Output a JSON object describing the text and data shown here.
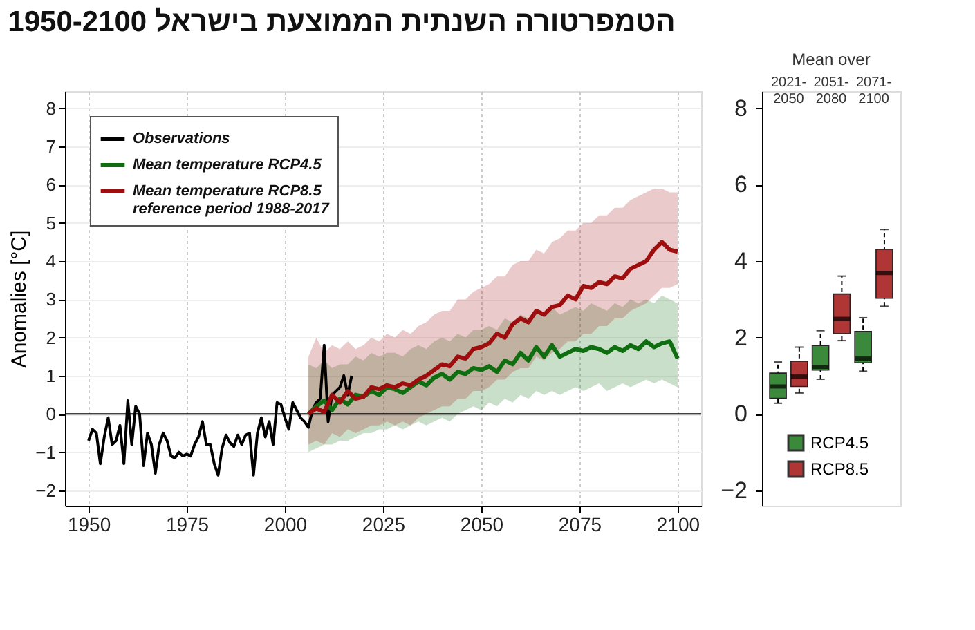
{
  "chart_data": [
    {
      "type": "line",
      "title": "הטמפרטורה השנתית הממוצעת בישראל 1950-2100",
      "ylabel": "Anomalies [°C]",
      "xlim": [
        1944,
        2106
      ],
      "xticks": [
        1950,
        1975,
        2000,
        2025,
        2050,
        2075,
        2100
      ],
      "ylim": [
        -2.4,
        8.45
      ],
      "yticks": [
        -2,
        -1,
        0,
        1,
        2,
        3,
        4,
        5,
        6,
        7,
        8
      ],
      "grid": true,
      "legend": "top left",
      "annotations": [
        "reference period 1988-2017"
      ],
      "ref_lines": [
        {
          "axis": "y",
          "value": 0,
          "color": "#000000"
        }
      ],
      "series": [
        {
          "name": "Observations",
          "color": "#000000",
          "x": [
            1950,
            1951,
            1952,
            1953,
            1954,
            1955,
            1956,
            1957,
            1958,
            1959,
            1960,
            1961,
            1962,
            1963,
            1964,
            1965,
            1966,
            1967,
            1968,
            1969,
            1970,
            1971,
            1972,
            1973,
            1974,
            1975,
            1976,
            1977,
            1978,
            1979,
            1980,
            1981,
            1982,
            1983,
            1984,
            1985,
            1986,
            1987,
            1988,
            1989,
            1990,
            1991,
            1992,
            1993,
            1994,
            1995,
            1996,
            1997,
            1998,
            1999,
            2000,
            2001,
            2002,
            2003,
            2004,
            2005,
            2006,
            2007,
            2008,
            2009,
            2010,
            2011,
            2012,
            2013,
            2014,
            2015,
            2016,
            2017
          ],
          "values": [
            -0.7,
            -0.4,
            -0.5,
            -1.3,
            -0.6,
            -0.1,
            -0.8,
            -0.7,
            -0.3,
            -1.3,
            0.35,
            -0.8,
            0.2,
            0.0,
            -1.35,
            -0.5,
            -0.8,
            -1.55,
            -0.8,
            -0.5,
            -0.7,
            -1.1,
            -1.15,
            -1.0,
            -1.1,
            -1.05,
            -1.1,
            -0.8,
            -0.6,
            -0.2,
            -0.8,
            -0.8,
            -1.3,
            -1.6,
            -0.9,
            -0.55,
            -0.75,
            -0.85,
            -0.55,
            -0.8,
            -0.55,
            -0.5,
            -1.6,
            -0.5,
            -0.1,
            -0.6,
            -0.2,
            -0.8,
            0.3,
            0.25,
            -0.1,
            -0.4,
            0.3,
            0.1,
            -0.1,
            -0.2,
            -0.35,
            0.1,
            0.3,
            0.4,
            1.8,
            -0.2,
            0.5,
            0.6,
            0.7,
            1.0,
            0.5,
            1.0
          ]
        },
        {
          "name": "Mean temperature RCP4.5",
          "color": "#0f6e0f",
          "x": [
            2006,
            2008,
            2010,
            2012,
            2014,
            2016,
            2018,
            2020,
            2022,
            2024,
            2026,
            2028,
            2030,
            2032,
            2034,
            2036,
            2038,
            2040,
            2042,
            2044,
            2046,
            2048,
            2050,
            2052,
            2054,
            2056,
            2058,
            2060,
            2062,
            2064,
            2066,
            2068,
            2070,
            2072,
            2074,
            2076,
            2078,
            2080,
            2082,
            2084,
            2086,
            2088,
            2090,
            2092,
            2094,
            2096,
            2098,
            2100
          ],
          "values": [
            0.0,
            0.2,
            0.35,
            0.1,
            0.4,
            0.25,
            0.5,
            0.45,
            0.6,
            0.5,
            0.7,
            0.65,
            0.55,
            0.7,
            0.85,
            0.75,
            0.95,
            1.05,
            0.9,
            1.1,
            1.05,
            1.2,
            1.15,
            1.25,
            1.1,
            1.4,
            1.3,
            1.6,
            1.4,
            1.75,
            1.5,
            1.8,
            1.5,
            1.6,
            1.7,
            1.65,
            1.75,
            1.7,
            1.6,
            1.75,
            1.65,
            1.8,
            1.7,
            1.9,
            1.75,
            1.85,
            1.9,
            1.45
          ],
          "lower": [
            -1.0,
            -0.9,
            -0.8,
            -0.8,
            -0.7,
            -0.7,
            -0.6,
            -0.5,
            -0.5,
            -0.4,
            -0.4,
            -0.3,
            -0.4,
            -0.3,
            -0.2,
            -0.3,
            -0.2,
            -0.1,
            -0.2,
            0.0,
            0.1,
            0.2,
            0.1,
            0.3,
            0.2,
            0.4,
            0.3,
            0.5,
            0.4,
            0.6,
            0.5,
            0.6,
            0.5,
            0.6,
            0.7,
            0.6,
            0.7,
            0.8,
            0.6,
            0.7,
            0.8,
            0.7,
            0.8,
            0.9,
            0.8,
            0.9,
            0.8,
            0.7
          ],
          "upper": [
            1.3,
            1.2,
            1.4,
            1.2,
            1.3,
            1.3,
            1.5,
            1.4,
            1.6,
            1.5,
            1.6,
            1.6,
            1.5,
            1.7,
            1.8,
            1.7,
            1.9,
            2.0,
            1.9,
            2.1,
            2.0,
            2.2,
            2.2,
            2.3,
            2.2,
            2.5,
            2.4,
            2.6,
            2.5,
            2.7,
            2.6,
            2.8,
            2.6,
            2.7,
            2.8,
            2.7,
            2.9,
            2.8,
            2.7,
            2.9,
            2.8,
            3.0,
            2.9,
            3.0,
            2.9,
            3.1,
            3.0,
            2.9
          ]
        },
        {
          "name": "Mean temperature RCP8.5",
          "color": "#9e0e0e",
          "x": [
            2006,
            2008,
            2010,
            2012,
            2014,
            2016,
            2018,
            2020,
            2022,
            2024,
            2026,
            2028,
            2030,
            2032,
            2034,
            2036,
            2038,
            2040,
            2042,
            2044,
            2046,
            2048,
            2050,
            2052,
            2054,
            2056,
            2058,
            2060,
            2062,
            2064,
            2066,
            2068,
            2070,
            2072,
            2074,
            2076,
            2078,
            2080,
            2082,
            2084,
            2086,
            2088,
            2090,
            2092,
            2094,
            2096,
            2098,
            2100
          ],
          "values": [
            0.0,
            0.15,
            0.05,
            0.5,
            0.3,
            0.6,
            0.4,
            0.45,
            0.7,
            0.65,
            0.75,
            0.7,
            0.8,
            0.75,
            0.9,
            1.0,
            1.15,
            1.3,
            1.25,
            1.5,
            1.45,
            1.7,
            1.75,
            1.85,
            2.1,
            2.0,
            2.35,
            2.5,
            2.4,
            2.7,
            2.6,
            2.8,
            2.85,
            3.1,
            3.0,
            3.35,
            3.3,
            3.45,
            3.4,
            3.6,
            3.55,
            3.8,
            3.9,
            4.0,
            4.3,
            4.5,
            4.3,
            4.25
          ],
          "lower": [
            -0.8,
            -0.7,
            -0.8,
            -0.5,
            -0.6,
            -0.4,
            -0.5,
            -0.4,
            -0.3,
            -0.3,
            -0.2,
            -0.3,
            -0.2,
            -0.3,
            -0.1,
            0.0,
            0.1,
            0.2,
            0.2,
            0.4,
            0.4,
            0.6,
            0.6,
            0.7,
            0.9,
            0.9,
            1.1,
            1.2,
            1.2,
            1.5,
            1.4,
            1.6,
            1.7,
            1.9,
            1.9,
            2.1,
            2.1,
            2.3,
            2.3,
            2.5,
            2.5,
            2.7,
            2.8,
            2.9,
            3.1,
            3.3,
            3.3,
            3.4
          ],
          "upper": [
            1.5,
            2.0,
            1.6,
            1.8,
            1.7,
            1.9,
            1.7,
            1.8,
            2.0,
            1.9,
            2.1,
            2.0,
            2.2,
            2.1,
            2.3,
            2.4,
            2.6,
            2.7,
            2.7,
            3.0,
            3.0,
            3.2,
            3.3,
            3.4,
            3.6,
            3.6,
            3.9,
            4.0,
            4.0,
            4.3,
            4.2,
            4.5,
            4.6,
            4.8,
            4.8,
            5.0,
            5.0,
            5.2,
            5.2,
            5.4,
            5.4,
            5.6,
            5.7,
            5.8,
            5.9,
            5.9,
            5.8,
            5.8
          ]
        }
      ]
    },
    {
      "type": "box",
      "title": "Mean over",
      "categories": [
        "2021-2050",
        "2051-2080",
        "2071-2100"
      ],
      "ylim": [
        -2.4,
        8.45
      ],
      "yticks": [
        -2,
        0,
        2,
        4,
        6,
        8
      ],
      "legend": "bottom left",
      "series": [
        {
          "name": "RCP4.5",
          "color": "#3b8a3b",
          "boxes": [
            {
              "low": 0.28,
              "q1": 0.41,
              "median": 0.72,
              "q3": 1.07,
              "high": 1.36
            },
            {
              "low": 0.91,
              "q1": 1.15,
              "median": 1.23,
              "q3": 1.79,
              "high": 2.18
            },
            {
              "low": 1.12,
              "q1": 1.34,
              "median": 1.45,
              "q3": 2.16,
              "high": 2.52
            }
          ]
        },
        {
          "name": "RCP8.5",
          "color": "#b03535",
          "boxes": [
            {
              "low": 0.55,
              "q1": 0.72,
              "median": 0.98,
              "q3": 1.38,
              "high": 1.75
            },
            {
              "low": 1.92,
              "q1": 2.1,
              "median": 2.49,
              "q3": 3.14,
              "high": 3.61
            },
            {
              "low": 2.82,
              "q1": 3.03,
              "median": 3.69,
              "q3": 4.31,
              "high": 4.83
            }
          ]
        }
      ]
    }
  ]
}
